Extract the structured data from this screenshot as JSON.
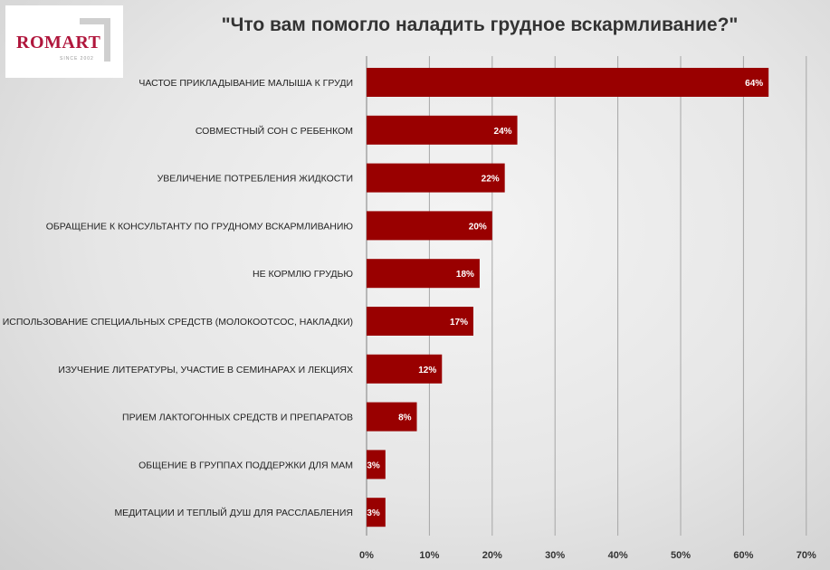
{
  "logo": {
    "brand": "ROMART",
    "since": "SINCE 2002"
  },
  "chart_data": {
    "type": "bar",
    "orientation": "horizontal",
    "title": "\"Что вам помогло наладить грудное вскармливание?\"",
    "categories": [
      "ЧАСТОЕ ПРИКЛАДЫВАНИЕ МАЛЫША К ГРУДИ",
      "СОВМЕСТНЫЙ СОН С РЕБЕНКОМ",
      "УВЕЛИЧЕНИЕ ПОТРЕБЛЕНИЯ ЖИДКОСТИ",
      "ОБРАЩЕНИЕ К КОНСУЛЬТАНТУ ПО ГРУДНОМУ ВСКАРМЛИВАНИЮ",
      "НЕ КОРМЛЮ ГРУДЬЮ",
      "ИСПОЛЬЗОВАНИЕ СПЕЦИАЛЬНЫХ СРЕДСТВ (МОЛОКООТСОС, НАКЛАДКИ)",
      "ИЗУЧЕНИЕ ЛИТЕРАТУРЫ, УЧАСТИЕ В СЕМИНАРАХ И ЛЕКЦИЯХ",
      "ПРИЕМ ЛАКТОГОННЫХ СРЕДСТВ И ПРЕПАРАТОВ",
      "ОБЩЕНИЕ В ГРУППАХ ПОДДЕРЖКИ ДЛЯ МАМ",
      "МЕДИТАЦИИ И ТЕПЛЫЙ ДУШ ДЛЯ РАССЛАБЛЕНИЯ"
    ],
    "values": [
      64,
      24,
      22,
      20,
      18,
      17,
      12,
      8,
      3,
      3
    ],
    "value_labels": [
      "64%",
      "24%",
      "22%",
      "20%",
      "18%",
      "17%",
      "12%",
      "8%",
      "3%",
      "3%"
    ],
    "xlim": [
      0,
      70
    ],
    "xticks": [
      0,
      10,
      20,
      30,
      40,
      50,
      60,
      70
    ],
    "xtick_labels": [
      "0%",
      "10%",
      "20%",
      "30%",
      "40%",
      "50%",
      "60%",
      "70%"
    ],
    "grid": "vertical",
    "legend": "none",
    "bar_color": "#990000",
    "grid_color": "#a6a6a6"
  }
}
